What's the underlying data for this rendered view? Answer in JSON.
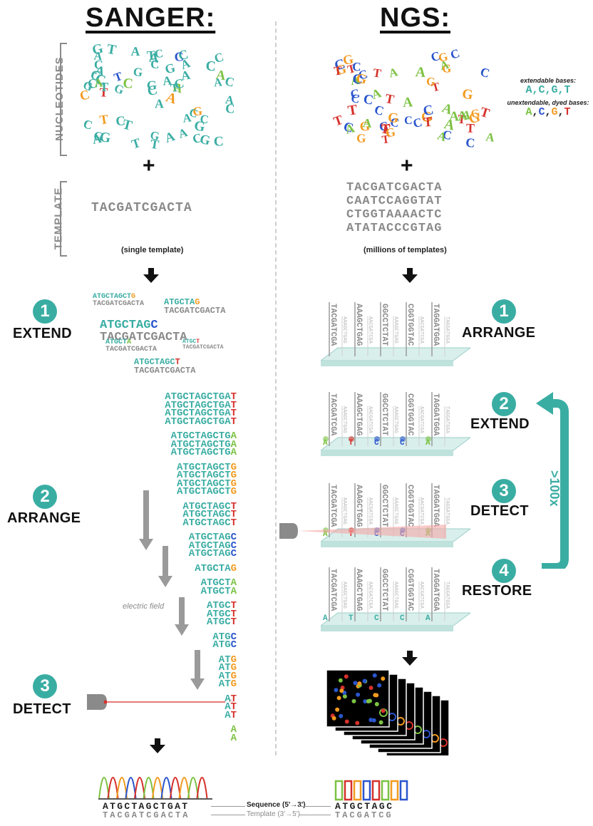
{
  "headers": {
    "left": "SANGER:",
    "right": "NGS:"
  },
  "labels": {
    "nucleotides": "NUCLEOTIDES",
    "template": "TEMPLATE"
  },
  "legend": {
    "extendable_title": "extendable bases:",
    "extendable": "A,C,G,T",
    "unextendable_title": "unextendable, dyed bases:",
    "dyed": [
      {
        "b": "A",
        "c": "#7cc243"
      },
      {
        "b": ",",
        "c": "#222"
      },
      {
        "b": "C",
        "c": "#2a55cc"
      },
      {
        "b": ",",
        "c": "#222"
      },
      {
        "b": "G",
        "c": "#f29a1f"
      },
      {
        "b": ",",
        "c": "#222"
      },
      {
        "b": "T",
        "c": "#d6312b"
      }
    ]
  },
  "sanger": {
    "template": "TACGATCGACTA",
    "template_caption": "(single template)",
    "steps": [
      {
        "num": "1",
        "label": "EXTEND"
      },
      {
        "num": "2",
        "label": "ARRANGE"
      },
      {
        "num": "3",
        "label": "DETECT"
      }
    ],
    "extend_frags": [
      {
        "top": "ATGCTAGCT",
        "last": "G",
        "bottom": "TACGATCGACTA",
        "size": 10
      },
      {
        "top": "ATGCTA",
        "last": "G",
        "bottom": "TACGATCGACTA",
        "size": 12
      },
      {
        "top": "ATGCTAG",
        "last": "C",
        "bottom": "TACGATCGACTA",
        "size": 17
      },
      {
        "top": "ATGCT",
        "last": "A",
        "bottom": "TACGATCGACTA",
        "size": 10
      },
      {
        "top": "ATGC",
        "last": "T",
        "bottom": "TACGATCGACTA",
        "size": 8
      },
      {
        "top": "ATGCTAGC",
        "last": "T",
        "bottom": "TACGATCGACTA",
        "size": 12
      }
    ],
    "arrange_groups": [
      {
        "stem": "ATGCTAGCTGA",
        "last": "T",
        "color": "#d6312b",
        "count": 4
      },
      {
        "stem": "ATGCTAGCTG",
        "last": "A",
        "color": "#7cc243",
        "count": 3
      },
      {
        "stem": "ATGCTAGCT",
        "last": "G",
        "color": "#f29a1f",
        "count": 4
      },
      {
        "stem": "ATGCTAGC",
        "last": "T",
        "color": "#d6312b",
        "count": 3
      },
      {
        "stem": "ATGCTAG",
        "last": "C",
        "color": "#2a55cc",
        "count": 3
      },
      {
        "stem": "ATGCTA",
        "last": "G",
        "color": "#f29a1f",
        "count": 1
      },
      {
        "stem": "ATGCT",
        "last": "A",
        "color": "#7cc243",
        "count": 2
      },
      {
        "stem": "ATGC",
        "last": "T",
        "color": "#d6312b",
        "count": 3
      },
      {
        "stem": "ATG",
        "last": "C",
        "color": "#2a55cc",
        "count": 2
      },
      {
        "stem": "AT",
        "last": "G",
        "color": "#f29a1f",
        "count": 4
      },
      {
        "stem": "A",
        "last": "T",
        "color": "#d6312b",
        "count": 3
      },
      {
        "stem": "",
        "last": "A",
        "color": "#7cc243",
        "count": 2
      }
    ],
    "electric_field": "electric field",
    "sequence_read": "ATGCTAGCTGAT",
    "template_read": "TACGATCGACTA"
  },
  "ngs": {
    "templates": [
      "TACGATCGACTA",
      "CAATCCAGGTAT",
      "CTGGTAAAACTC",
      "ATATACCCGTAG"
    ],
    "template_caption": "(millions of templates)",
    "steps": [
      {
        "num": "1",
        "label": "ARRANGE"
      },
      {
        "num": "2",
        "label": "EXTEND"
      },
      {
        "num": "3",
        "label": "DETECT"
      },
      {
        "num": "4",
        "label": "RESTORE"
      }
    ],
    "cycle_label": ">100x",
    "strands_main": [
      "TACGATCGA",
      "AAAGCTGAG",
      "GGCCTCTAT",
      "CGGTGGTAC",
      "TAGGATGGA"
    ],
    "strands_faint": [
      "AAAGCTGAG",
      "AACGATCGA",
      "AAAGCTGAG",
      "AACGATCGA",
      "TAGGATGGA"
    ],
    "sequence_read": "ATGCTAGC",
    "template_read": "TACGATCG"
  },
  "bottom_labels": {
    "sequence": "Sequence (5'→3')",
    "template": "Template (3'→5')"
  }
}
